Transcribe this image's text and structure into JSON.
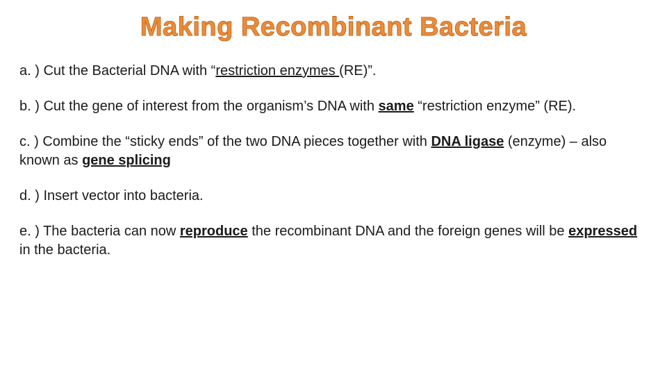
{
  "title": "Making Recombinant Bacteria",
  "title_color": "#ec8c3a",
  "title_stroke": "#c56a1e",
  "title_fontsize": 38,
  "body_fontsize": 20,
  "body_color": "#1a1a1a",
  "background_color": "#ffffff",
  "steps": {
    "a": {
      "prefix": "a. ) Cut the Bacterial DNA with “",
      "key_term": "restriction enzymes ",
      "suffix": "(RE)”."
    },
    "b": {
      "prefix": "b. ) Cut the gene of interest from the organism’s DNA with ",
      "key_term": "same",
      "mid": " “restriction enzyme” (RE)."
    },
    "c": {
      "prefix": "c. ) Combine the “sticky ends” of the two DNA pieces together with ",
      "term1": "DNA ligase",
      "mid": " (enzyme) – also known as ",
      "term2": "gene splicing"
    },
    "d": {
      "text": "d. ) Insert vector into bacteria."
    },
    "e": {
      "prefix": "e. ) The bacteria can now ",
      "term1": "reproduce",
      "mid": " the recombinant DNA and the foreign genes will be ",
      "term2": "expressed",
      "suffix": " in the bacteria."
    }
  }
}
